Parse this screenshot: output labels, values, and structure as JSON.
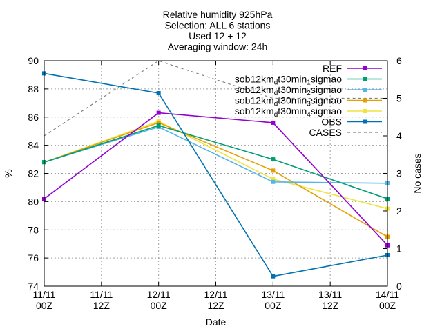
{
  "chart_data": {
    "type": "line",
    "title_lines": [
      "Relative humidity 925hPa",
      "Selection: ALL       6 stations",
      "Used 12 + 12",
      "Averaging window: 24h"
    ],
    "xlabel": "Date",
    "ylabel": "%",
    "y2label": "No cases",
    "x": [
      "11/11 00Z",
      "11/11 12Z",
      "12/11 00Z",
      "12/11 12Z",
      "13/11 00Z",
      "13/11 12Z",
      "14/11 00Z"
    ],
    "x_ticks": [
      {
        "line1": "11/11",
        "line2": "00Z"
      },
      {
        "line1": "11/11",
        "line2": "12Z"
      },
      {
        "line1": "12/11",
        "line2": "00Z"
      },
      {
        "line1": "12/11",
        "line2": "12Z"
      },
      {
        "line1": "13/11",
        "line2": "00Z"
      },
      {
        "line1": "13/11",
        "line2": "12Z"
      },
      {
        "line1": "14/11",
        "line2": "00Z"
      }
    ],
    "ylim": [
      74,
      90
    ],
    "y_ticks": [
      "74",
      "76",
      "78",
      "80",
      "82",
      "84",
      "86",
      "88",
      "90"
    ],
    "y2lim": [
      0,
      6
    ],
    "y2_ticks": [
      "0",
      "1",
      "2",
      "3",
      "4",
      "5",
      "6"
    ],
    "grid": true,
    "legend_position": "top-right",
    "series": [
      {
        "name": "REF",
        "name_main": "REF",
        "name_sub": "",
        "name_tail": "",
        "color": "#9400d3",
        "dash": false,
        "axis": "y1",
        "points": [
          [
            0,
            80.2
          ],
          [
            2,
            86.3
          ],
          [
            4,
            85.6
          ],
          [
            6,
            76.9
          ]
        ]
      },
      {
        "name": "sob12km_dt30min_1sigmao",
        "name_main": "sob12km",
        "name_sub": "d",
        "name_tail": "t30min",
        "name_sub2": "1",
        "name_tail2": "sigmao",
        "color": "#009e73",
        "dash": false,
        "axis": "y1",
        "points": [
          [
            0,
            82.8
          ],
          [
            2,
            85.4
          ],
          [
            4,
            83.0
          ],
          [
            6,
            80.2
          ]
        ]
      },
      {
        "name": "sob12km_dt30min_2sigmao",
        "name_main": "sob12km",
        "name_sub": "d",
        "name_tail": "t30min",
        "name_sub2": "2",
        "name_tail2": "sigmao",
        "color": "#56b4e9",
        "dash": false,
        "axis": "y1",
        "points": [
          [
            0,
            82.8
          ],
          [
            2,
            85.3
          ],
          [
            4,
            81.4
          ],
          [
            6,
            81.3
          ]
        ]
      },
      {
        "name": "sob12km_dt30min_3sigmao",
        "name_main": "sob12km",
        "name_sub": "d",
        "name_tail": "t30min",
        "name_sub2": "3",
        "name_tail2": "sigmao",
        "color": "#e69f00",
        "dash": false,
        "axis": "y1",
        "points": [
          [
            0,
            82.8
          ],
          [
            2,
            85.6
          ],
          [
            4,
            82.2
          ],
          [
            6,
            77.5
          ]
        ]
      },
      {
        "name": "sob12km_dt30min_4sigmao",
        "name_main": "sob12km",
        "name_sub": "d",
        "name_tail": "t30min",
        "name_sub2": "4",
        "name_tail2": "sigmao",
        "color": "#f0e442",
        "dash": false,
        "axis": "y1",
        "points": [
          [
            0,
            82.8
          ],
          [
            2,
            85.7
          ],
          [
            4,
            81.6
          ],
          [
            6,
            79.5
          ]
        ]
      },
      {
        "name": "OBS",
        "name_main": "OBS",
        "name_sub": "",
        "name_tail": "",
        "color": "#0072b2",
        "dash": false,
        "axis": "y1",
        "points": [
          [
            0,
            89.1
          ],
          [
            2,
            87.7
          ],
          [
            4,
            74.7
          ],
          [
            6,
            76.2
          ]
        ]
      },
      {
        "name": "CASES",
        "name_main": "CASES",
        "name_sub": "",
        "name_tail": "",
        "color": "#808080",
        "dash": true,
        "axis": "y2",
        "points": [
          [
            0,
            4
          ],
          [
            2,
            6
          ],
          [
            4,
            5
          ],
          [
            6,
            5
          ]
        ]
      }
    ]
  }
}
